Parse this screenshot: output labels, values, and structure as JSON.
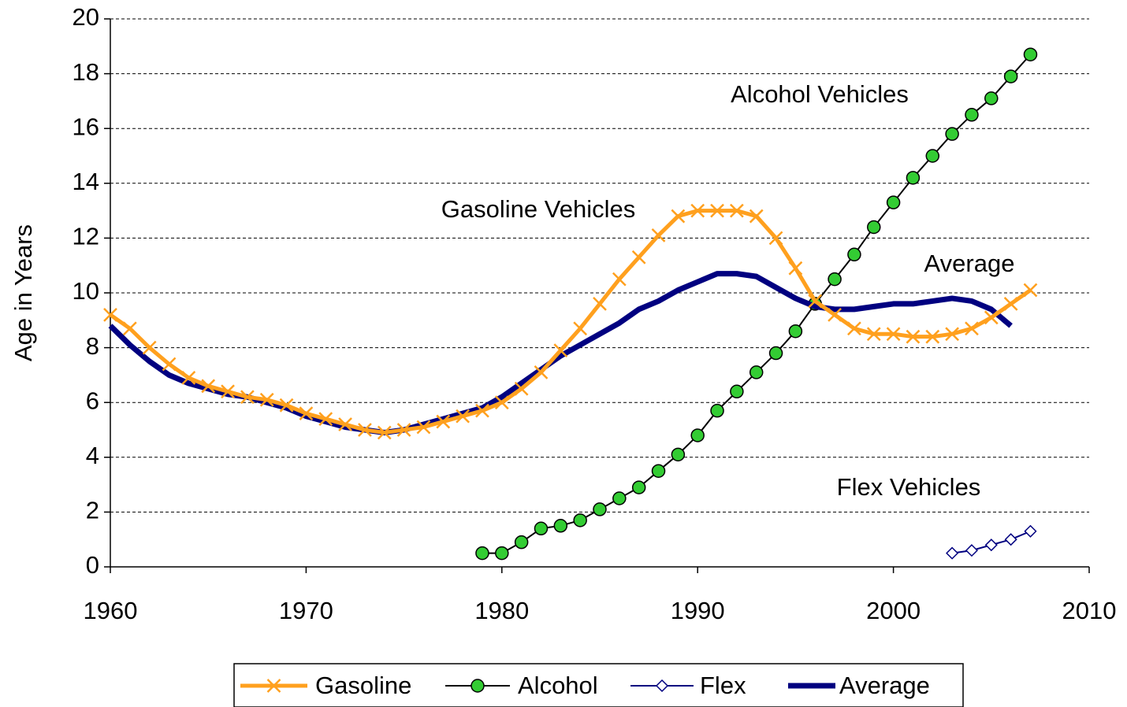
{
  "chart_data": {
    "type": "line",
    "y_label": "Age in Years",
    "x": [
      1960,
      1961,
      1962,
      1963,
      1964,
      1965,
      1966,
      1967,
      1968,
      1969,
      1970,
      1971,
      1972,
      1973,
      1974,
      1975,
      1976,
      1977,
      1978,
      1979,
      1980,
      1981,
      1982,
      1983,
      1984,
      1985,
      1986,
      1987,
      1988,
      1989,
      1990,
      1991,
      1992,
      1993,
      1994,
      1995,
      1996,
      1997,
      1998,
      1999,
      2000,
      2001,
      2002,
      2003,
      2004,
      2005,
      2006,
      2007
    ],
    "series": [
      {
        "name": "Gasoline",
        "color": "#ffa01e",
        "marker": "x",
        "values": [
          9.2,
          8.7,
          8.0,
          7.4,
          6.9,
          6.6,
          6.4,
          6.2,
          6.1,
          5.9,
          5.6,
          5.4,
          5.2,
          5.0,
          4.9,
          5.0,
          5.1,
          5.3,
          5.5,
          5.7,
          6.0,
          6.5,
          7.1,
          7.9,
          8.7,
          9.6,
          10.5,
          11.3,
          12.1,
          12.8,
          13.0,
          13.0,
          13.0,
          12.8,
          12.0,
          10.9,
          9.7,
          9.2,
          8.7,
          8.5,
          8.5,
          8.4,
          8.4,
          8.5,
          8.7,
          9.1,
          9.6,
          10.1
        ]
      },
      {
        "name": "Alcohol",
        "color": "#000000",
        "marker": "circle",
        "marker_color": "#33cc33",
        "values": [
          null,
          null,
          null,
          null,
          null,
          null,
          null,
          null,
          null,
          null,
          null,
          null,
          null,
          null,
          null,
          null,
          null,
          null,
          null,
          0.5,
          0.5,
          0.9,
          1.4,
          1.5,
          1.7,
          2.1,
          2.5,
          2.9,
          3.5,
          4.1,
          4.8,
          5.7,
          6.4,
          7.1,
          7.8,
          8.6,
          9.6,
          10.5,
          11.4,
          12.4,
          13.3,
          14.2,
          15.0,
          15.8,
          16.5,
          17.1,
          17.9,
          18.7
        ]
      },
      {
        "name": "Flex",
        "color": "#000080",
        "marker": "diamond",
        "values": [
          null,
          null,
          null,
          null,
          null,
          null,
          null,
          null,
          null,
          null,
          null,
          null,
          null,
          null,
          null,
          null,
          null,
          null,
          null,
          null,
          null,
          null,
          null,
          null,
          null,
          null,
          null,
          null,
          null,
          null,
          null,
          null,
          null,
          null,
          null,
          null,
          null,
          null,
          null,
          null,
          null,
          null,
          null,
          0.5,
          0.6,
          0.8,
          1.0,
          1.3
        ]
      },
      {
        "name": "Average",
        "color": "#000080",
        "marker": "none",
        "values": [
          8.8,
          8.1,
          7.5,
          7.0,
          6.7,
          6.5,
          6.3,
          6.2,
          6.0,
          5.8,
          5.5,
          5.3,
          5.1,
          5.0,
          4.9,
          5.0,
          5.2,
          5.4,
          5.6,
          5.8,
          6.2,
          6.7,
          7.2,
          7.7,
          8.1,
          8.5,
          8.9,
          9.4,
          9.7,
          10.1,
          10.4,
          10.7,
          10.7,
          10.6,
          10.2,
          9.8,
          9.5,
          9.4,
          9.4,
          9.5,
          9.6,
          9.6,
          9.7,
          9.8,
          9.7,
          9.4,
          8.8,
          null
        ]
      }
    ],
    "annotations": [
      "Alcohol Vehicles",
      "Gasoline Vehicles",
      "Average",
      "Flex Vehicles"
    ],
    "xlim": [
      1960,
      2010
    ],
    "xticks": [
      1960,
      1970,
      1980,
      1990,
      2000,
      2010
    ],
    "ylim": [
      0,
      20
    ],
    "yticks": [
      0,
      2,
      4,
      6,
      8,
      10,
      12,
      14,
      16,
      18,
      20
    ],
    "grid": true,
    "legend": "bottom"
  }
}
